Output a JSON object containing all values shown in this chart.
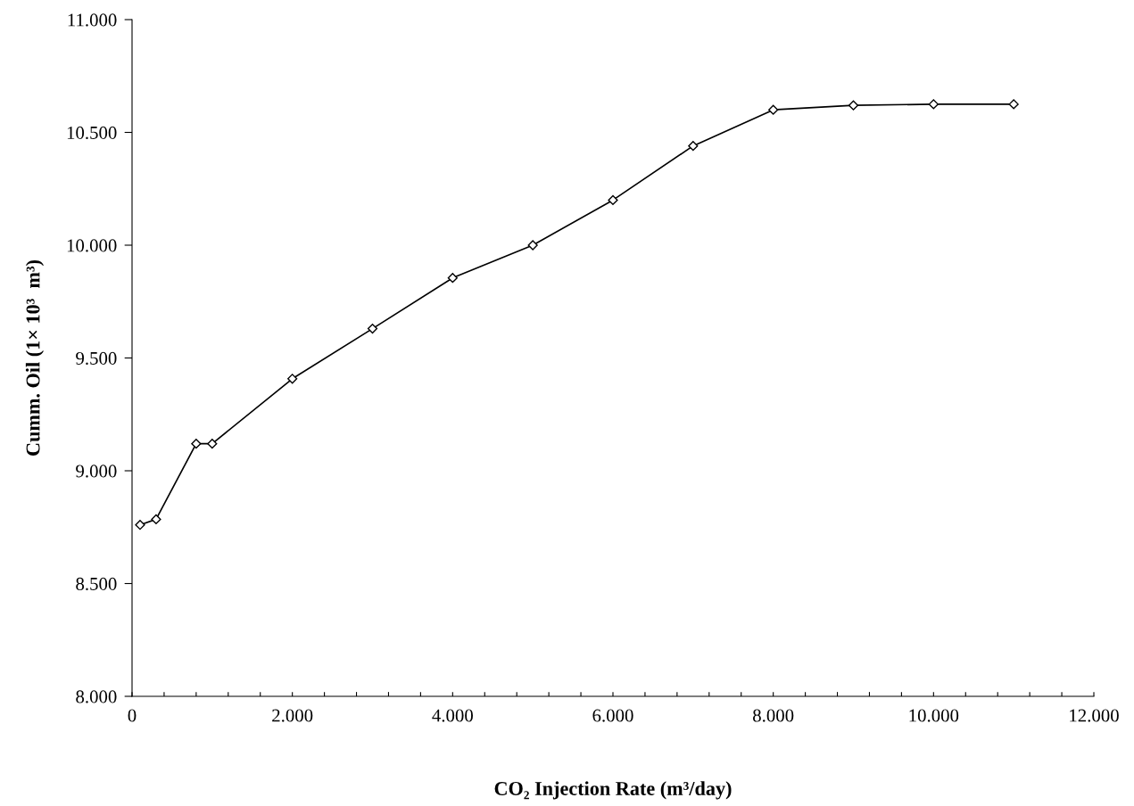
{
  "chart_data": {
    "type": "line",
    "xlabel": "CO₂ Injection Rate (m³/day)",
    "ylabel": "Cumm. Oil (1× 10³  m³)",
    "x": [
      100,
      300,
      800,
      1000,
      2000,
      3000,
      4000,
      5000,
      6000,
      7000,
      8000,
      9000,
      10000,
      11000
    ],
    "series": [
      {
        "color": "#000000",
        "values": [
          8760,
          8785,
          9120,
          9120,
          9408,
          9630,
          9855,
          10000,
          10200,
          10440,
          10600,
          10620,
          10625,
          10625
        ]
      }
    ],
    "xlim": [
      0,
      12000
    ],
    "xticks": [
      {
        "value": 0,
        "label": "0"
      },
      {
        "value": 400,
        "label": null
      },
      {
        "value": 800,
        "label": null
      },
      {
        "value": 1200,
        "label": null
      },
      {
        "value": 1600,
        "label": null
      },
      {
        "value": 2000,
        "label": "2.000"
      },
      {
        "value": 2400,
        "label": null
      },
      {
        "value": 2800,
        "label": null
      },
      {
        "value": 3200,
        "label": null
      },
      {
        "value": 3600,
        "label": null
      },
      {
        "value": 4000,
        "label": "4.000"
      },
      {
        "value": 4400,
        "label": null
      },
      {
        "value": 4800,
        "label": null
      },
      {
        "value": 5200,
        "label": null
      },
      {
        "value": 5600,
        "label": null
      },
      {
        "value": 6000,
        "label": "6.000"
      },
      {
        "value": 6400,
        "label": null
      },
      {
        "value": 6800,
        "label": null
      },
      {
        "value": 7200,
        "label": null
      },
      {
        "value": 7600,
        "label": null
      },
      {
        "value": 8000,
        "label": "8.000"
      },
      {
        "value": 8400,
        "label": null
      },
      {
        "value": 8800,
        "label": null
      },
      {
        "value": 9200,
        "label": null
      },
      {
        "value": 9600,
        "label": null
      },
      {
        "value": 10000,
        "label": "10.000"
      },
      {
        "value": 10400,
        "label": null
      },
      {
        "value": 10800,
        "label": null
      },
      {
        "value": 11200,
        "label": null
      },
      {
        "value": 11600,
        "label": null
      },
      {
        "value": 12000,
        "label": "12.000"
      }
    ],
    "ylim": [
      8000,
      11000
    ],
    "yticks": [
      {
        "value": 8000,
        "label": "8.000"
      },
      {
        "value": 8500,
        "label": "8.500"
      },
      {
        "value": 9000,
        "label": "9.000"
      },
      {
        "value": 9500,
        "label": "9.500"
      },
      {
        "value": 10000,
        "label": "10.000"
      },
      {
        "value": 10500,
        "label": "10.500"
      },
      {
        "value": 11000,
        "label": "11.000"
      }
    ],
    "grid": false,
    "legend": false,
    "marker": "diamond",
    "line_style": "solid"
  }
}
